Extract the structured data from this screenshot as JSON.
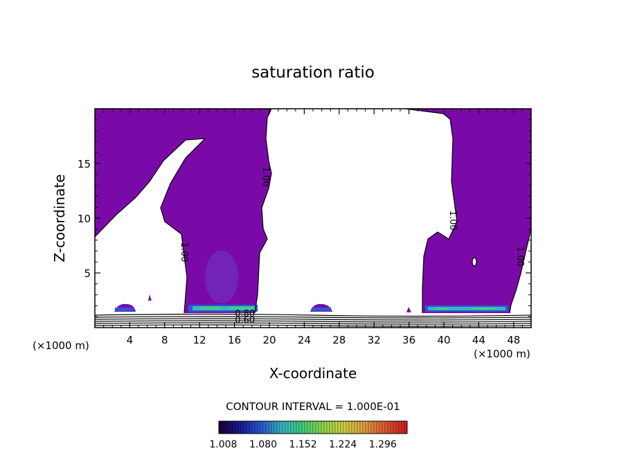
{
  "chart_data": {
    "type": "heatmap",
    "title": "saturation ratio",
    "xlabel": "X-coordinate",
    "ylabel": "Z-coordinate",
    "x_unit": "(×1000 m)",
    "xlim": [
      0,
      50
    ],
    "ylim": [
      0,
      20
    ],
    "x_ticks": [
      4,
      8,
      12,
      16,
      20,
      24,
      28,
      32,
      36,
      40,
      44,
      48
    ],
    "y_ticks": [
      5,
      10,
      15
    ],
    "fill_threshold": 1.0,
    "fill_color": "#7a0aa8",
    "contour_labels": [
      {
        "text": "1.00",
        "x": 19.3,
        "z": 13.8
      },
      {
        "text": "1.00",
        "x": 9.9,
        "z": 6.9
      },
      {
        "text": "1.00",
        "x": 40.7,
        "z": 9.8
      },
      {
        "text": "1.00",
        "x": 48.4,
        "z": 6.5
      },
      {
        "text": "0.80",
        "x": 17.2,
        "z": 1.0
      },
      {
        "text": "0.60",
        "x": 17.2,
        "z": 0.4
      }
    ],
    "contour_interval_label": "CONTOUR INTERVAL = 1.000E-01",
    "colorbar": {
      "min": 1.0,
      "max": 1.34,
      "tick_labels": [
        "1.008",
        "1.080",
        "1.152",
        "1.224",
        "1.296"
      ],
      "colors": [
        "#1a0038",
        "#1d1a9a",
        "#2a58d6",
        "#37b6c0",
        "#3fd07a",
        "#8fd84a",
        "#d0d040",
        "#e0a040",
        "#e05830",
        "#d02020"
      ]
    }
  }
}
